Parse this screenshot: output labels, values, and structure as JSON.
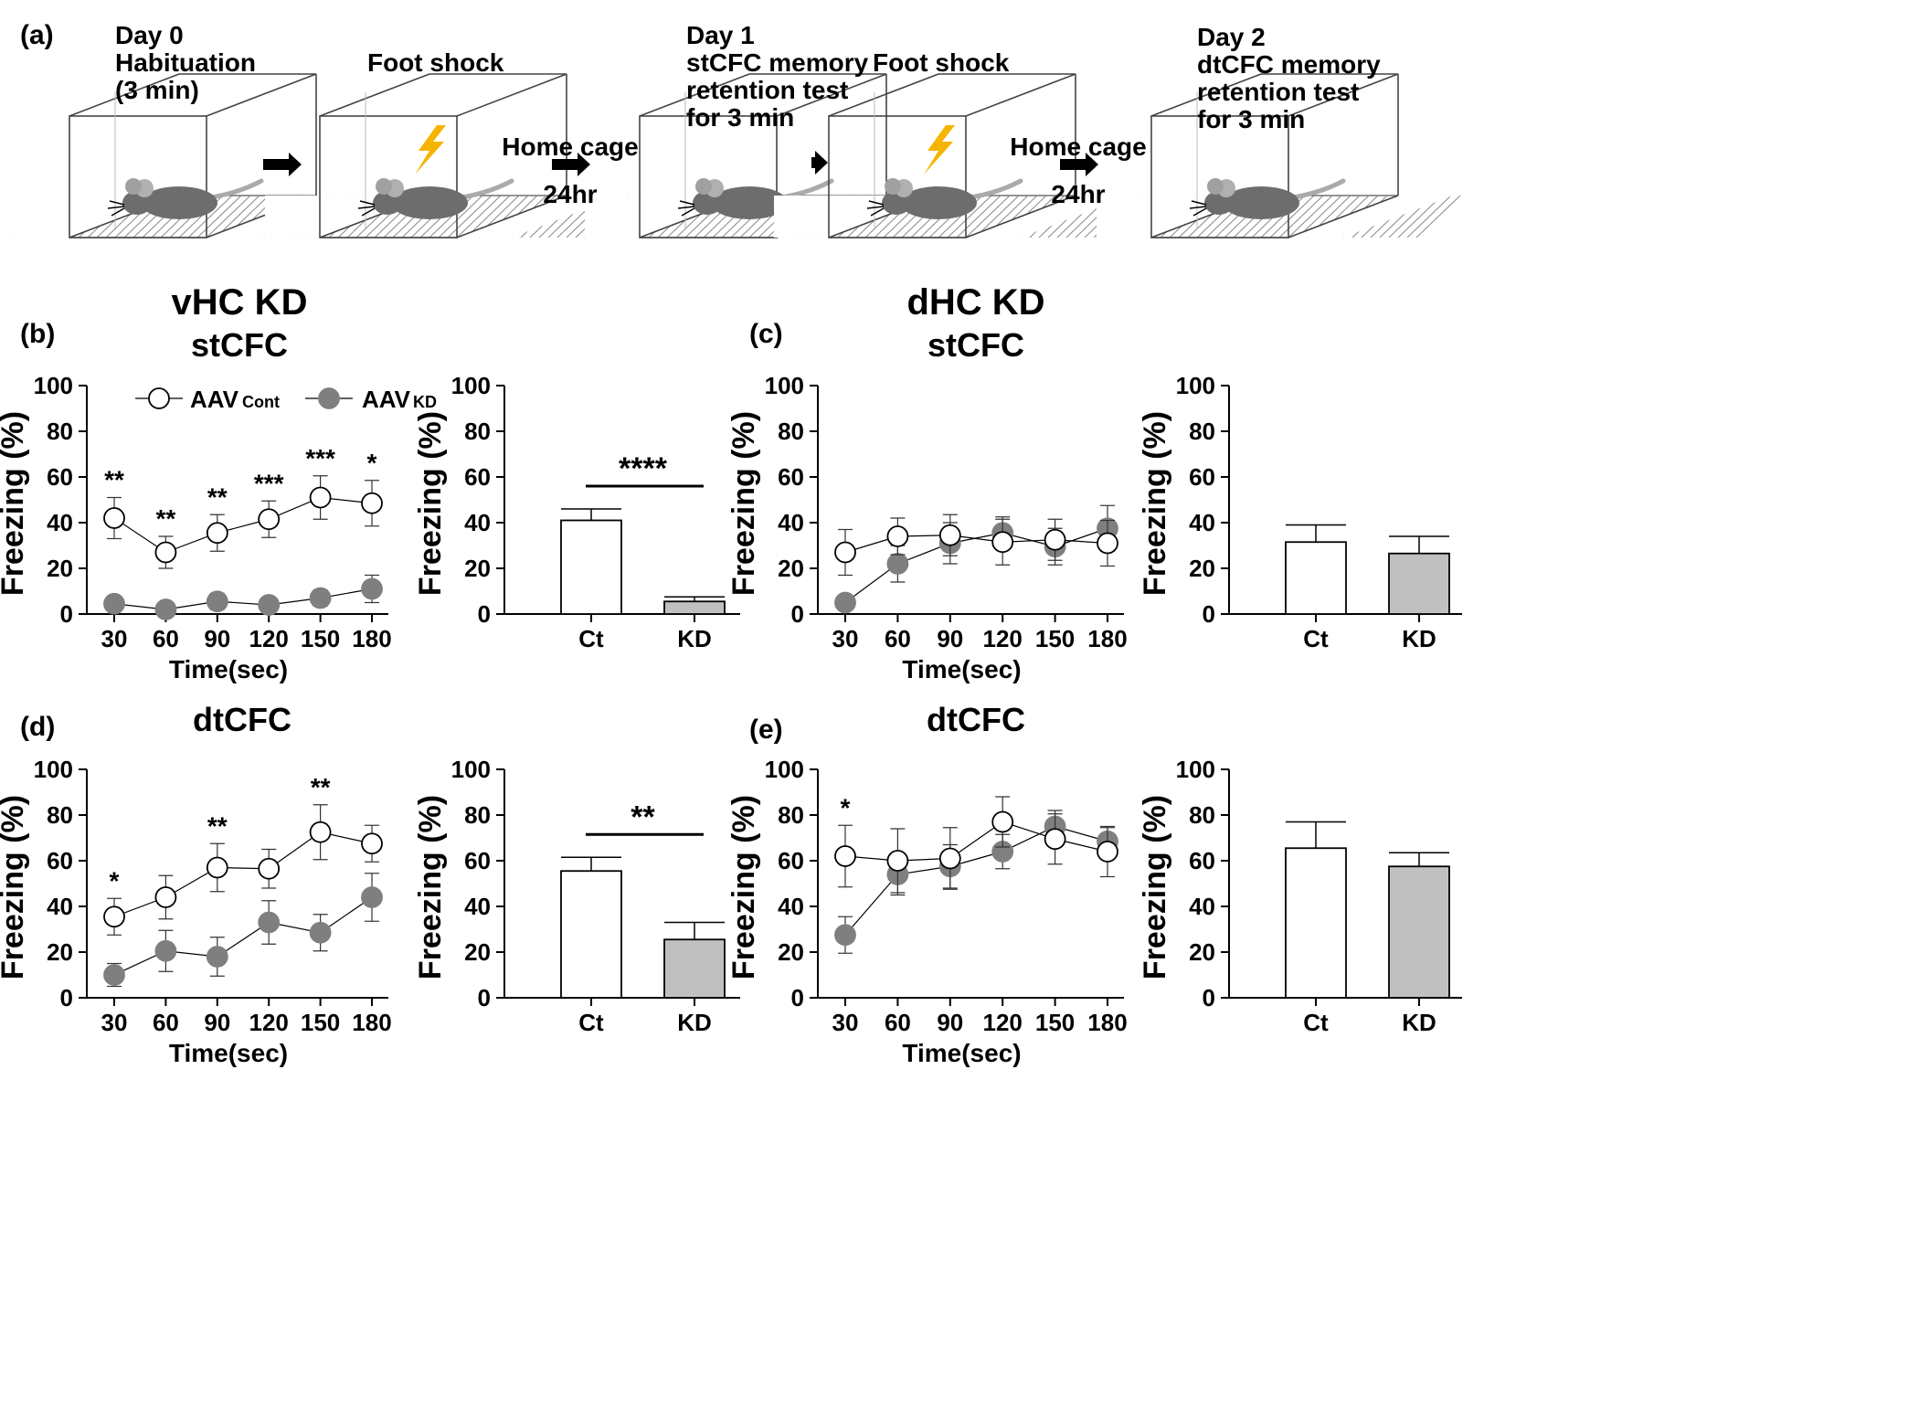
{
  "panel_a": {
    "label": "(a)",
    "steps": [
      {
        "lines": [
          "Day 0",
          "Habituation",
          "(3 min)"
        ]
      },
      {
        "lines": [
          "Foot shock"
        ]
      },
      {
        "lines": [
          "Day 1",
          "stCFC memory",
          "retention test",
          "for 3 min"
        ]
      },
      {
        "lines": [
          "Foot shock"
        ]
      },
      {
        "lines": [
          "Day 2",
          "dtCFC memory",
          "retention test",
          "for 3 min"
        ]
      }
    ],
    "transitions": [
      {
        "lines": []
      },
      {
        "lines": [
          "Home cage",
          "24hr"
        ]
      },
      {
        "lines": []
      },
      {
        "lines": [
          "Home cage",
          "24hr"
        ]
      }
    ]
  },
  "section_titles": {
    "left": "vHC KD",
    "right": "dHC KD"
  },
  "panel_titles": [
    {
      "label": "(b)",
      "title": "stCFC"
    },
    {
      "label": "(c)",
      "title": "stCFC"
    },
    {
      "label": "(d)",
      "title": "dtCFC"
    },
    {
      "label": "(e)",
      "title": "dtCFC"
    }
  ],
  "legend": {
    "cont": "AAV",
    "cont_sub": "Cont",
    "kd": "AAV",
    "kd_sub": "KD"
  },
  "colors": {
    "kd_marker": "#7f7f7f",
    "kd_bar": "#c0c0c0",
    "ct_bar": "#ffffff"
  },
  "chart_data": [
    {
      "id": "b-line",
      "type": "line",
      "xlabel": "Time(sec)",
      "ylabel": "Freezing (%)",
      "ylim": [
        0,
        100
      ],
      "yticks": [
        0,
        20,
        40,
        60,
        80,
        100
      ],
      "x": [
        30,
        60,
        90,
        120,
        150,
        180
      ],
      "series": [
        {
          "name": "AAV Cont",
          "values": [
            42,
            27,
            35.5,
            41.5,
            51,
            48.5
          ],
          "err": [
            9,
            7,
            8,
            8,
            9.5,
            10
          ]
        },
        {
          "name": "AAV KD",
          "values": [
            4.5,
            2,
            5.5,
            4,
            7,
            11
          ],
          "err": [
            3,
            2,
            3.5,
            3,
            3.5,
            6
          ]
        }
      ],
      "annotations": [
        "**",
        "**",
        "**",
        "***",
        "***",
        "*"
      ]
    },
    {
      "id": "b-bar",
      "type": "bar",
      "ylabel": "Freezing (%)",
      "ylim": [
        0,
        100
      ],
      "yticks": [
        0,
        20,
        40,
        60,
        80,
        100
      ],
      "categories": [
        "Ct",
        "KD"
      ],
      "values": [
        41,
        5.5
      ],
      "err": [
        5,
        2
      ],
      "significance": "****"
    },
    {
      "id": "c-line",
      "type": "line",
      "xlabel": "Time(sec)",
      "ylabel": "Freezing (%)",
      "ylim": [
        0,
        100
      ],
      "yticks": [
        0,
        20,
        40,
        60,
        80,
        100
      ],
      "x": [
        30,
        60,
        90,
        120,
        150,
        180
      ],
      "series": [
        {
          "name": "AAV Cont",
          "values": [
            27,
            34,
            34.5,
            31.5,
            32.5,
            31
          ],
          "err": [
            10,
            8,
            9,
            10,
            9,
            10
          ]
        },
        {
          "name": "AAV KD",
          "values": [
            5,
            22,
            31,
            35.5,
            29.5,
            37.5
          ],
          "err": [
            3,
            8,
            9,
            7,
            8,
            10
          ]
        }
      ],
      "annotations": [
        "",
        "",
        "",
        "",
        "",
        ""
      ]
    },
    {
      "id": "c-bar",
      "type": "bar",
      "ylabel": "Freezing (%)",
      "ylim": [
        0,
        100
      ],
      "yticks": [
        0,
        20,
        40,
        60,
        80,
        100
      ],
      "categories": [
        "Ct",
        "KD"
      ],
      "values": [
        31.5,
        26.5
      ],
      "err": [
        7.5,
        7.5
      ],
      "significance": ""
    },
    {
      "id": "d-line",
      "type": "line",
      "xlabel": "Time(sec)",
      "ylabel": "Freezing (%)",
      "ylim": [
        0,
        100
      ],
      "yticks": [
        0,
        20,
        40,
        60,
        80,
        100
      ],
      "x": [
        30,
        60,
        90,
        120,
        150,
        180
      ],
      "series": [
        {
          "name": "AAV Cont",
          "values": [
            35.5,
            44,
            57,
            56.5,
            72.5,
            67.5
          ],
          "err": [
            8,
            9.5,
            10.5,
            8.5,
            12,
            8
          ]
        },
        {
          "name": "AAV KD",
          "values": [
            10,
            20.5,
            18,
            33,
            28.5,
            44
          ],
          "err": [
            5,
            9,
            8.5,
            9.5,
            8,
            10.5
          ]
        }
      ],
      "annotations": [
        "*",
        "",
        "**",
        "",
        "**",
        ""
      ]
    },
    {
      "id": "d-bar",
      "type": "bar",
      "ylabel": "Freezing (%)",
      "ylim": [
        0,
        100
      ],
      "yticks": [
        0,
        20,
        40,
        60,
        80,
        100
      ],
      "categories": [
        "Ct",
        "KD"
      ],
      "values": [
        55.5,
        25.5
      ],
      "err": [
        6,
        7.5
      ],
      "significance": "**"
    },
    {
      "id": "e-line",
      "type": "line",
      "xlabel": "Time(sec)",
      "ylabel": "Freezing (%)",
      "ylim": [
        0,
        100
      ],
      "yticks": [
        0,
        20,
        40,
        60,
        80,
        100
      ],
      "x": [
        30,
        60,
        90,
        120,
        150,
        180
      ],
      "series": [
        {
          "name": "AAV Cont",
          "values": [
            62,
            60,
            61,
            77,
            69.5,
            64
          ],
          "err": [
            13.5,
            14,
            13.5,
            11,
            11,
            11
          ]
        },
        {
          "name": "AAV KD",
          "values": [
            27.5,
            54,
            57.5,
            64,
            75,
            68.5
          ],
          "err": [
            8,
            9,
            9.5,
            7.5,
            7,
            6
          ]
        }
      ],
      "annotations": [
        "*",
        "",
        "",
        "",
        "",
        ""
      ]
    },
    {
      "id": "e-bar",
      "type": "bar",
      "ylabel": "Freezing (%)",
      "ylim": [
        0,
        100
      ],
      "yticks": [
        0,
        20,
        40,
        60,
        80,
        100
      ],
      "categories": [
        "Ct",
        "KD"
      ],
      "values": [
        65.5,
        57.5
      ],
      "err": [
        11.5,
        6
      ],
      "significance": ""
    }
  ]
}
